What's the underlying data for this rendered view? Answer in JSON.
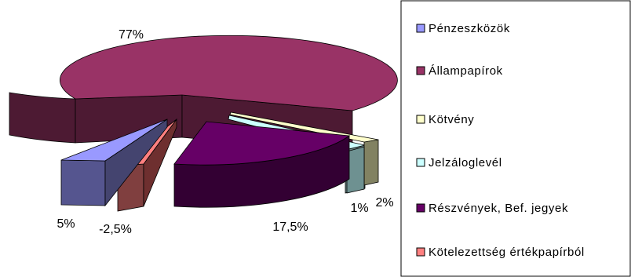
{
  "chart_data": {
    "type": "pie",
    "style": "3d-exploded",
    "legend_position": "right",
    "slices": [
      {
        "name": "Pénzeszközök",
        "value": 5,
        "label": "5%",
        "color": "#9999ff",
        "side": "#55558f"
      },
      {
        "name": "Állampapírok",
        "value": 77,
        "label": "77%",
        "color": "#993366",
        "side": "#4d1a33"
      },
      {
        "name": "Kötvény",
        "value": 2,
        "label": "2%",
        "color": "#ffffcc",
        "side": "#828262"
      },
      {
        "name": "Jelzáloglevél",
        "value": 1,
        "label": "1%",
        "color": "#ccffff",
        "side": "#668080"
      },
      {
        "name": "Részvények, Bef. jegyek",
        "value": 17.5,
        "label": "17,5%",
        "color": "#660066",
        "side": "#330033"
      },
      {
        "name": "Kötelezettség értékpapírból",
        "value": -2.5,
        "label": "-2,5%",
        "color": "#ff8080",
        "side": "#803f3f"
      }
    ]
  }
}
